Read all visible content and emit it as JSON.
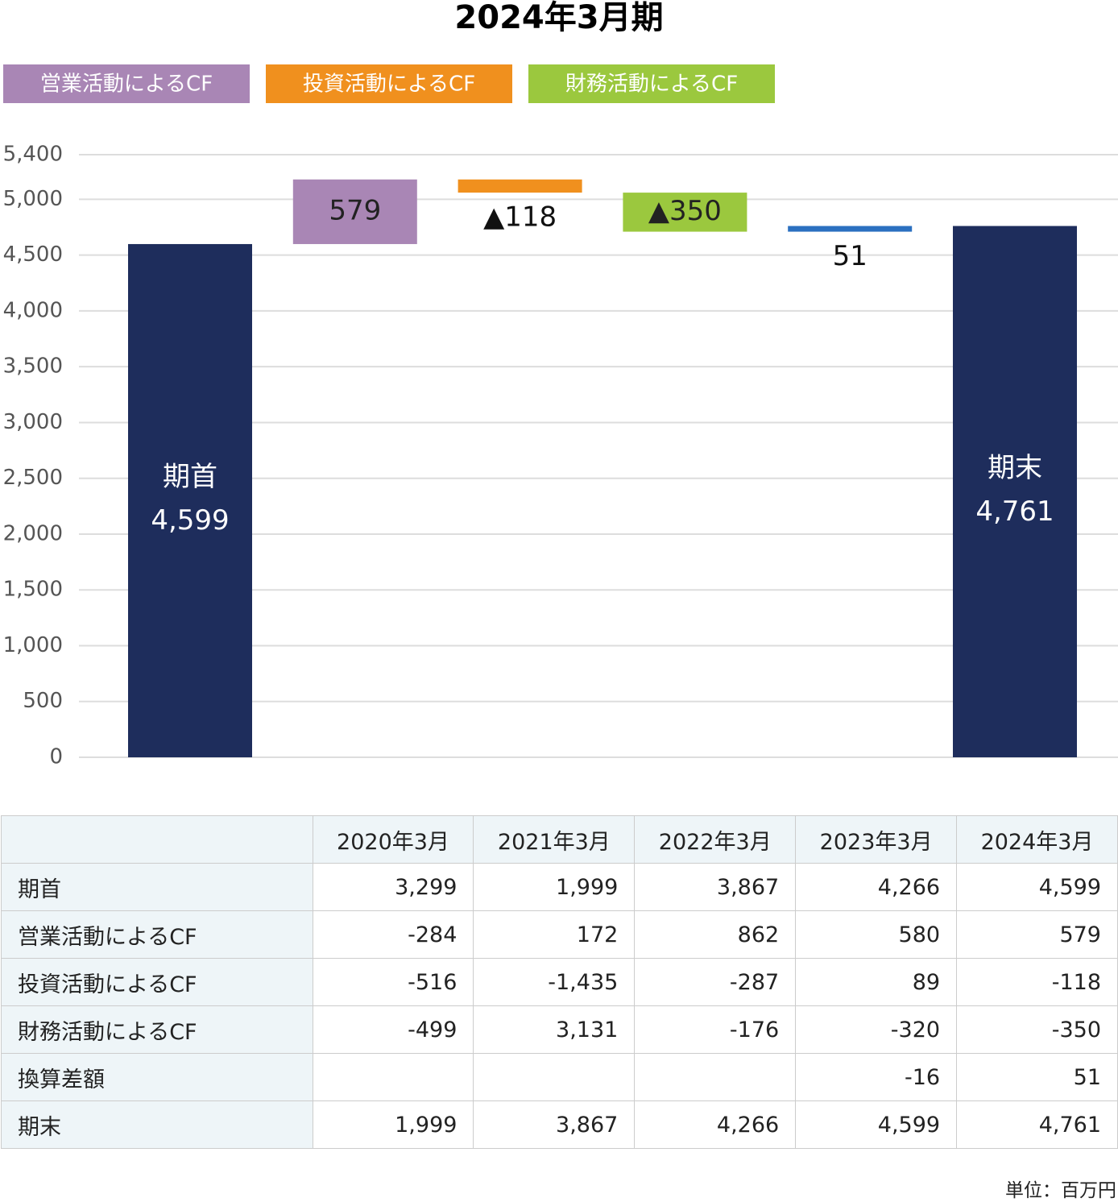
{
  "chart_data": {
    "type": "waterfall",
    "title": "2024年3月期",
    "categories": [
      "期首",
      null,
      null,
      null,
      null,
      "期末"
    ],
    "measure": [
      "total",
      "relative",
      "relative",
      "relative",
      "relative",
      "total"
    ],
    "values": [
      4599,
      579,
      -118,
      -350,
      51,
      4761
    ],
    "value_labels": [
      "4,599",
      "579",
      "▲118",
      "▲350",
      "51",
      "4,761"
    ],
    "colors": [
      "#1e2d5c",
      "#a986b5",
      "#f0901e",
      "#9bc83e",
      "#2b70c0",
      "#1e2d5c"
    ],
    "legend": [
      {
        "name": "営業活動によるCF",
        "color": "#a986b5"
      },
      {
        "name": "投資活動によるCF",
        "color": "#f0901e"
      },
      {
        "name": "財務活動によるCF",
        "color": "#9bc83e"
      }
    ],
    "ylim": [
      0,
      5400
    ],
    "yticks": [
      0,
      500,
      {
        "value": 1000,
        "label": "1,000"
      },
      {
        "value": 1500,
        "label": "1,500"
      },
      {
        "value": 2000,
        "label": "2,000"
      },
      {
        "value": 2500,
        "label": "2,500"
      },
      {
        "value": 3000,
        "label": "3,000"
      },
      {
        "value": 3500,
        "label": "3,500"
      },
      {
        "value": 4000,
        "label": "4,000"
      },
      {
        "value": 4500,
        "label": "4,500"
      },
      {
        "value": 5000,
        "label": "5,000"
      },
      {
        "value": 5400,
        "label": "5,400"
      }
    ],
    "grid": true
  },
  "table": {
    "columns": [
      "2020年3月",
      "2021年3月",
      "2022年3月",
      "2023年3月",
      "2024年3月"
    ],
    "rows": [
      {
        "label": "期首",
        "cells": [
          "3,299",
          "1,999",
          "3,867",
          "4,266",
          "4,599"
        ]
      },
      {
        "label": "営業活動によるCF",
        "cells": [
          "-284",
          "172",
          "862",
          "580",
          "579"
        ]
      },
      {
        "label": "投資活動によるCF",
        "cells": [
          "-516",
          "-1,435",
          "-287",
          "89",
          "-118"
        ]
      },
      {
        "label": "財務活動によるCF",
        "cells": [
          "-499",
          "3,131",
          "-176",
          "-320",
          "-350"
        ]
      },
      {
        "label": "換算差額",
        "cells": [
          null,
          null,
          null,
          "-16",
          "51"
        ]
      },
      {
        "label": "期末",
        "cells": [
          "1,999",
          "3,867",
          "4,266",
          "4,599",
          "4,761"
        ]
      }
    ],
    "unit_note": "単位：百万円"
  }
}
